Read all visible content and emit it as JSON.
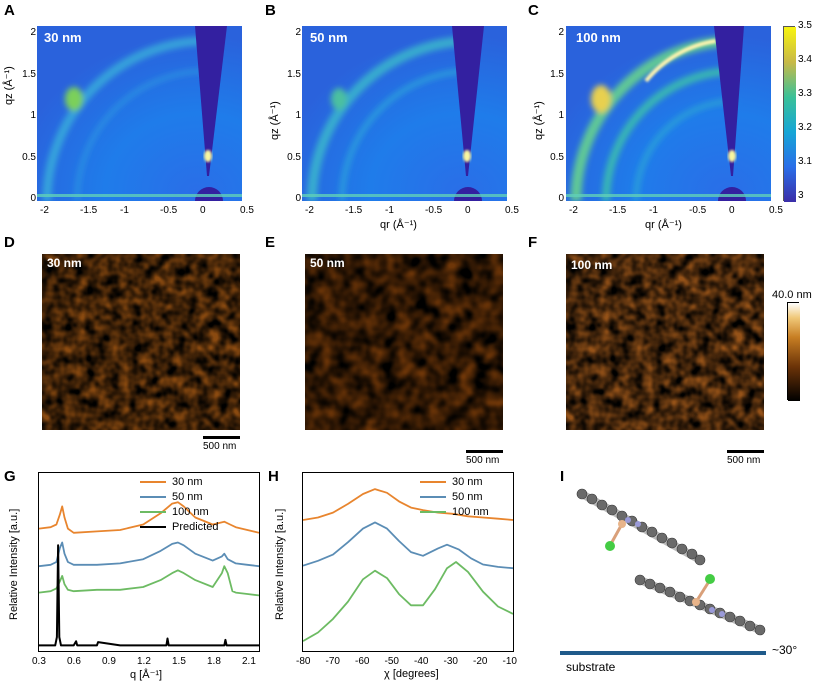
{
  "figure": {
    "panels": {
      "A": {
        "letter": "A",
        "label": "30 nm"
      },
      "B": {
        "letter": "B",
        "label": "50 nm"
      },
      "C": {
        "letter": "C",
        "label": "100 nm"
      },
      "D": {
        "letter": "D",
        "label": "30 nm"
      },
      "E": {
        "letter": "E",
        "label": "50 nm"
      },
      "F": {
        "letter": "F",
        "label": "100 nm"
      },
      "G": {
        "letter": "G"
      },
      "H": {
        "letter": "H"
      },
      "I": {
        "letter": "I"
      }
    },
    "giwaxs": {
      "ylabel": "qz (Å⁻¹)",
      "xlabel": "qr (Å⁻¹)",
      "yticks": [
        "2",
        "1.5",
        "1",
        "0.5",
        "0"
      ],
      "xticks": [
        "-2",
        "-1.5",
        "-1",
        "-0.5",
        "0",
        "0.5"
      ],
      "colorbar_ticks": [
        "3.5",
        "3.4",
        "3.3",
        "3.2",
        "3.1",
        "3"
      ]
    },
    "afm": {
      "colorbar_label": "40.0 nm",
      "scalebar_label": "500 nm"
    },
    "molecule": {
      "substrate_label": "substrate",
      "angle_label": "~30°"
    }
  },
  "chart_data": [
    {
      "type": "line",
      "panel": "G",
      "xlabel": "q [Å⁻¹]",
      "ylabel": "Relative Intensity [a.u.]",
      "xlim": [
        0.3,
        2.2
      ],
      "xticks": [
        "0.3",
        "0.6",
        "0.9",
        "1.2",
        "1.5",
        "1.8",
        "2.1"
      ],
      "legend": [
        "30 nm",
        "50 nm",
        "100 nm",
        "Predicted"
      ],
      "colors": [
        "#e8852e",
        "#5b8db5",
        "#6dbb63",
        "#000000"
      ],
      "series": [
        {
          "name": "30 nm",
          "x": [
            0.3,
            0.4,
            0.45,
            0.48,
            0.5,
            0.52,
            0.55,
            0.6,
            0.8,
            1.0,
            1.2,
            1.35,
            1.45,
            1.5,
            1.55,
            1.65,
            1.8,
            1.85,
            1.9,
            1.95,
            2.0,
            2.1,
            2.2
          ],
          "y": [
            4.2,
            4.25,
            4.35,
            4.7,
            5.0,
            4.6,
            4.2,
            4.05,
            4.1,
            4.15,
            4.35,
            4.75,
            5.1,
            5.15,
            5.0,
            4.6,
            4.35,
            4.4,
            4.45,
            4.35,
            4.25,
            4.15,
            4.05
          ]
        },
        {
          "name": "50 nm",
          "x": [
            0.3,
            0.4,
            0.45,
            0.48,
            0.5,
            0.52,
            0.55,
            0.6,
            0.8,
            1.0,
            1.2,
            1.35,
            1.45,
            1.5,
            1.55,
            1.65,
            1.8,
            1.88,
            1.9,
            1.93,
            2.0,
            2.1,
            2.2
          ],
          "y": [
            2.85,
            2.9,
            3.0,
            3.5,
            3.7,
            3.3,
            3.0,
            2.9,
            2.9,
            2.95,
            3.1,
            3.4,
            3.65,
            3.7,
            3.6,
            3.3,
            3.05,
            3.2,
            3.3,
            3.1,
            2.95,
            2.9,
            2.85
          ]
        },
        {
          "name": "100 nm",
          "x": [
            0.3,
            0.4,
            0.45,
            0.48,
            0.5,
            0.52,
            0.55,
            0.6,
            0.8,
            1.0,
            1.2,
            1.35,
            1.45,
            1.5,
            1.55,
            1.65,
            1.8,
            1.88,
            1.9,
            1.93,
            1.97,
            2.0,
            2.1,
            2.2
          ],
          "y": [
            1.9,
            1.95,
            2.05,
            2.3,
            2.5,
            2.2,
            2.0,
            1.95,
            2.0,
            2.0,
            2.1,
            2.35,
            2.6,
            2.7,
            2.6,
            2.35,
            2.1,
            2.6,
            2.85,
            2.6,
            1.95,
            1.9,
            1.85,
            1.8
          ]
        },
        {
          "name": "Predicted",
          "x": [
            0.3,
            0.44,
            0.455,
            0.465,
            0.475,
            0.49,
            0.6,
            0.62,
            0.63,
            0.8,
            0.81,
            1.0,
            1.4,
            1.41,
            1.42,
            1.9,
            1.91,
            1.92,
            2.2
          ],
          "y": [
            0,
            0,
            0.3,
            3.6,
            0.3,
            0,
            0,
            0.15,
            0,
            0,
            0.12,
            0,
            0,
            0.25,
            0,
            0,
            0.2,
            0,
            0
          ]
        }
      ]
    },
    {
      "type": "line",
      "panel": "H",
      "xlabel": "χ [degrees]",
      "ylabel": "Relative Intensity [a.u.]",
      "xlim": [
        -80,
        -10
      ],
      "xticks": [
        "-80",
        "-70",
        "-60",
        "-50",
        "-40",
        "-30",
        "-20",
        "-10"
      ],
      "legend": [
        "30 nm",
        "50 nm",
        "100 nm"
      ],
      "colors": [
        "#e8852e",
        "#5b8db5",
        "#6dbb63"
      ],
      "series": [
        {
          "name": "30 nm",
          "x": [
            -80,
            -75,
            -70,
            -65,
            -60,
            -56,
            -52,
            -48,
            -44,
            -40,
            -35,
            -30,
            -25,
            -20,
            -15,
            -10
          ],
          "y": [
            5.3,
            5.4,
            5.6,
            5.95,
            6.35,
            6.55,
            6.4,
            6.05,
            5.8,
            5.7,
            5.6,
            5.55,
            5.45,
            5.4,
            5.35,
            5.3
          ]
        },
        {
          "name": "50 nm",
          "x": [
            -80,
            -75,
            -70,
            -65,
            -60,
            -56,
            -52,
            -48,
            -44,
            -40,
            -35,
            -32,
            -28,
            -24,
            -20,
            -15,
            -10
          ],
          "y": [
            3.45,
            3.65,
            3.9,
            4.4,
            4.95,
            5.2,
            4.95,
            4.45,
            4.0,
            3.85,
            4.15,
            4.3,
            4.1,
            3.75,
            3.5,
            3.4,
            3.35
          ]
        },
        {
          "name": "100 nm",
          "x": [
            -80,
            -75,
            -70,
            -65,
            -60,
            -56,
            -52,
            -48,
            -44,
            -40,
            -36,
            -32,
            -29,
            -25,
            -20,
            -15,
            -10
          ],
          "y": [
            0.4,
            0.75,
            1.3,
            2.0,
            2.9,
            3.25,
            2.95,
            2.3,
            1.85,
            1.85,
            2.5,
            3.35,
            3.6,
            3.2,
            2.4,
            1.8,
            1.5
          ]
        }
      ]
    }
  ]
}
